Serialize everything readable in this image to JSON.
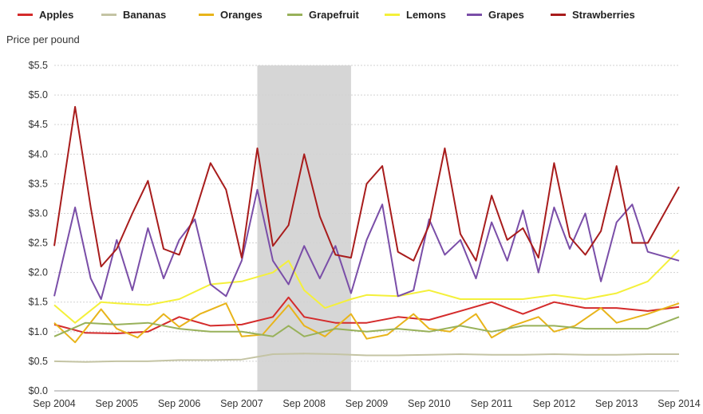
{
  "chart_data": {
    "type": "line",
    "ylabel": "Price per pound",
    "ylim": [
      0,
      5.5
    ],
    "yticks": [
      "$0.0",
      "$0.5",
      "$1.0",
      "$1.5",
      "$2.0",
      "$2.5",
      "$3.0",
      "$3.5",
      "$4.0",
      "$4.5",
      "$5.0",
      "$5.5"
    ],
    "ytick_values": [
      0,
      0.5,
      1,
      1.5,
      2,
      2.5,
      3,
      3.5,
      4,
      4.5,
      5,
      5.5
    ],
    "xticks": [
      "Sep 2004",
      "Sep 2005",
      "Sep 2006",
      "Sep 2007",
      "Sep 2008",
      "Sep 2009",
      "Sep 2010",
      "Sep 2011",
      "Sep 2012",
      "Sep 2013",
      "Sep 2014"
    ],
    "xtick_values": [
      "2004-09",
      "2005-09",
      "2006-09",
      "2007-09",
      "2008-09",
      "2009-09",
      "2010-09",
      "2011-09",
      "2012-09",
      "2013-09",
      "2014-09"
    ],
    "xlim": [
      "2004-09",
      "2014-09"
    ],
    "recession_shading": {
      "start": "2007-12",
      "end": "2009-06"
    },
    "grid": "horizontal",
    "legend_position": "top",
    "series": [
      {
        "name": "Apples",
        "color": "#d42b2b",
        "points": [
          [
            "2004-09",
            1.12
          ],
          [
            "2005-03",
            0.98
          ],
          [
            "2005-09",
            0.97
          ],
          [
            "2006-03",
            1.0
          ],
          [
            "2006-09",
            1.25
          ],
          [
            "2007-03",
            1.1
          ],
          [
            "2007-09",
            1.12
          ],
          [
            "2008-03",
            1.25
          ],
          [
            "2008-06",
            1.58
          ],
          [
            "2008-09",
            1.25
          ],
          [
            "2009-03",
            1.15
          ],
          [
            "2009-09",
            1.15
          ],
          [
            "2010-03",
            1.25
          ],
          [
            "2010-09",
            1.2
          ],
          [
            "2011-03",
            1.35
          ],
          [
            "2011-09",
            1.5
          ],
          [
            "2012-03",
            1.3
          ],
          [
            "2012-09",
            1.5
          ],
          [
            "2013-03",
            1.4
          ],
          [
            "2013-09",
            1.4
          ],
          [
            "2014-03",
            1.35
          ],
          [
            "2014-09",
            1.42
          ]
        ]
      },
      {
        "name": "Bananas",
        "color": "#c4c4a4",
        "points": [
          [
            "2004-09",
            0.5
          ],
          [
            "2005-03",
            0.49
          ],
          [
            "2005-09",
            0.5
          ],
          [
            "2006-03",
            0.5
          ],
          [
            "2006-09",
            0.52
          ],
          [
            "2007-03",
            0.52
          ],
          [
            "2007-09",
            0.53
          ],
          [
            "2008-03",
            0.62
          ],
          [
            "2008-09",
            0.63
          ],
          [
            "2009-03",
            0.62
          ],
          [
            "2009-09",
            0.6
          ],
          [
            "2010-03",
            0.6
          ],
          [
            "2010-09",
            0.61
          ],
          [
            "2011-03",
            0.62
          ],
          [
            "2011-09",
            0.61
          ],
          [
            "2012-03",
            0.61
          ],
          [
            "2012-09",
            0.62
          ],
          [
            "2013-03",
            0.61
          ],
          [
            "2013-09",
            0.61
          ],
          [
            "2014-03",
            0.62
          ],
          [
            "2014-09",
            0.62
          ]
        ]
      },
      {
        "name": "Oranges",
        "color": "#e8b41a",
        "points": [
          [
            "2004-09",
            1.15
          ],
          [
            "2005-01",
            0.82
          ],
          [
            "2005-06",
            1.38
          ],
          [
            "2005-09",
            1.05
          ],
          [
            "2006-01",
            0.9
          ],
          [
            "2006-06",
            1.3
          ],
          [
            "2006-09",
            1.08
          ],
          [
            "2007-01",
            1.3
          ],
          [
            "2007-06",
            1.48
          ],
          [
            "2007-09",
            0.92
          ],
          [
            "2008-01",
            0.95
          ],
          [
            "2008-06",
            1.45
          ],
          [
            "2008-09",
            1.1
          ],
          [
            "2009-01",
            0.92
          ],
          [
            "2009-06",
            1.3
          ],
          [
            "2009-09",
            0.88
          ],
          [
            "2010-01",
            0.95
          ],
          [
            "2010-06",
            1.3
          ],
          [
            "2010-09",
            1.05
          ],
          [
            "2011-01",
            1.0
          ],
          [
            "2011-06",
            1.3
          ],
          [
            "2011-09",
            0.9
          ],
          [
            "2012-01",
            1.1
          ],
          [
            "2012-06",
            1.25
          ],
          [
            "2012-09",
            1.0
          ],
          [
            "2013-01",
            1.1
          ],
          [
            "2013-06",
            1.4
          ],
          [
            "2013-09",
            1.15
          ],
          [
            "2014-03",
            1.3
          ],
          [
            "2014-09",
            1.48
          ]
        ]
      },
      {
        "name": "Grapefruit",
        "color": "#98b15a",
        "points": [
          [
            "2004-09",
            0.92
          ],
          [
            "2005-03",
            1.15
          ],
          [
            "2005-09",
            1.12
          ],
          [
            "2006-03",
            1.15
          ],
          [
            "2006-09",
            1.05
          ],
          [
            "2007-03",
            1.0
          ],
          [
            "2007-09",
            1.0
          ],
          [
            "2008-03",
            0.92
          ],
          [
            "2008-06",
            1.1
          ],
          [
            "2008-09",
            0.92
          ],
          [
            "2009-03",
            1.05
          ],
          [
            "2009-09",
            1.0
          ],
          [
            "2010-03",
            1.05
          ],
          [
            "2010-09",
            1.0
          ],
          [
            "2011-03",
            1.1
          ],
          [
            "2011-09",
            1.0
          ],
          [
            "2012-03",
            1.1
          ],
          [
            "2012-09",
            1.1
          ],
          [
            "2013-03",
            1.05
          ],
          [
            "2013-09",
            1.05
          ],
          [
            "2014-03",
            1.05
          ],
          [
            "2014-09",
            1.25
          ]
        ]
      },
      {
        "name": "Lemons",
        "color": "#f4f03a",
        "points": [
          [
            "2004-09",
            1.45
          ],
          [
            "2005-01",
            1.15
          ],
          [
            "2005-06",
            1.5
          ],
          [
            "2005-09",
            1.48
          ],
          [
            "2006-03",
            1.45
          ],
          [
            "2006-09",
            1.55
          ],
          [
            "2007-03",
            1.8
          ],
          [
            "2007-09",
            1.85
          ],
          [
            "2008-03",
            2.0
          ],
          [
            "2008-06",
            2.2
          ],
          [
            "2008-09",
            1.7
          ],
          [
            "2009-01",
            1.4
          ],
          [
            "2009-06",
            1.55
          ],
          [
            "2009-09",
            1.62
          ],
          [
            "2010-03",
            1.6
          ],
          [
            "2010-09",
            1.7
          ],
          [
            "2011-03",
            1.55
          ],
          [
            "2011-09",
            1.55
          ],
          [
            "2012-03",
            1.55
          ],
          [
            "2012-09",
            1.62
          ],
          [
            "2013-03",
            1.55
          ],
          [
            "2013-09",
            1.65
          ],
          [
            "2014-03",
            1.85
          ],
          [
            "2014-09",
            2.38
          ]
        ]
      },
      {
        "name": "Grapes",
        "color": "#7a4ea8",
        "points": [
          [
            "2004-09",
            1.6
          ],
          [
            "2005-01",
            3.1
          ],
          [
            "2005-04",
            1.9
          ],
          [
            "2005-06",
            1.55
          ],
          [
            "2005-09",
            2.55
          ],
          [
            "2005-12",
            1.7
          ],
          [
            "2006-03",
            2.75
          ],
          [
            "2006-06",
            1.9
          ],
          [
            "2006-09",
            2.55
          ],
          [
            "2006-12",
            2.9
          ],
          [
            "2007-03",
            1.8
          ],
          [
            "2007-06",
            1.6
          ],
          [
            "2007-09",
            2.2
          ],
          [
            "2007-12",
            3.4
          ],
          [
            "2008-03",
            2.2
          ],
          [
            "2008-06",
            1.8
          ],
          [
            "2008-09",
            2.45
          ],
          [
            "2008-12",
            1.9
          ],
          [
            "2009-03",
            2.45
          ],
          [
            "2009-06",
            1.65
          ],
          [
            "2009-09",
            2.55
          ],
          [
            "2009-12",
            3.15
          ],
          [
            "2010-03",
            1.6
          ],
          [
            "2010-06",
            1.7
          ],
          [
            "2010-09",
            2.9
          ],
          [
            "2010-12",
            2.3
          ],
          [
            "2011-03",
            2.55
          ],
          [
            "2011-06",
            1.9
          ],
          [
            "2011-09",
            2.85
          ],
          [
            "2011-12",
            2.2
          ],
          [
            "2012-03",
            3.05
          ],
          [
            "2012-06",
            2.0
          ],
          [
            "2012-09",
            3.1
          ],
          [
            "2012-12",
            2.4
          ],
          [
            "2013-03",
            3.0
          ],
          [
            "2013-06",
            1.85
          ],
          [
            "2013-09",
            2.85
          ],
          [
            "2013-12",
            3.15
          ],
          [
            "2014-03",
            2.35
          ],
          [
            "2014-09",
            2.2
          ]
        ]
      },
      {
        "name": "Strawberries",
        "color": "#a81c1c",
        "points": [
          [
            "2004-09",
            2.45
          ],
          [
            "2005-01",
            4.8
          ],
          [
            "2005-04",
            3.1
          ],
          [
            "2005-06",
            2.1
          ],
          [
            "2005-09",
            2.4
          ],
          [
            "2005-12",
            3.0
          ],
          [
            "2006-03",
            3.55
          ],
          [
            "2006-06",
            2.4
          ],
          [
            "2006-09",
            2.3
          ],
          [
            "2006-12",
            3.0
          ],
          [
            "2007-03",
            3.85
          ],
          [
            "2007-06",
            3.4
          ],
          [
            "2007-09",
            2.25
          ],
          [
            "2007-12",
            4.1
          ],
          [
            "2008-03",
            2.45
          ],
          [
            "2008-06",
            2.8
          ],
          [
            "2008-09",
            4.0
          ],
          [
            "2008-12",
            2.95
          ],
          [
            "2009-03",
            2.3
          ],
          [
            "2009-06",
            2.25
          ],
          [
            "2009-09",
            3.5
          ],
          [
            "2009-12",
            3.8
          ],
          [
            "2010-03",
            2.35
          ],
          [
            "2010-06",
            2.2
          ],
          [
            "2010-09",
            2.8
          ],
          [
            "2010-12",
            4.1
          ],
          [
            "2011-03",
            2.65
          ],
          [
            "2011-06",
            2.2
          ],
          [
            "2011-09",
            3.3
          ],
          [
            "2011-12",
            2.55
          ],
          [
            "2012-03",
            2.75
          ],
          [
            "2012-06",
            2.25
          ],
          [
            "2012-09",
            3.85
          ],
          [
            "2012-12",
            2.6
          ],
          [
            "2013-03",
            2.3
          ],
          [
            "2013-06",
            2.7
          ],
          [
            "2013-09",
            3.8
          ],
          [
            "2013-12",
            2.5
          ],
          [
            "2014-03",
            2.5
          ],
          [
            "2014-09",
            3.45
          ]
        ]
      }
    ]
  }
}
